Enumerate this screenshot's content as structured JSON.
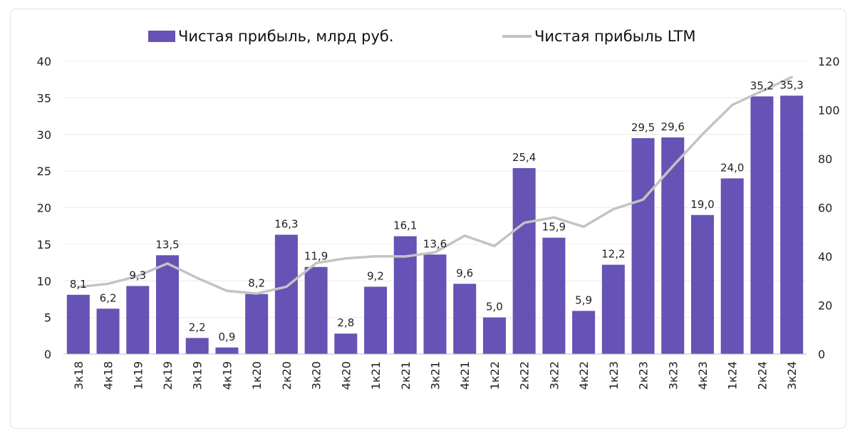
{
  "chart_data": {
    "type": "bar+line",
    "title": "",
    "categories": [
      "3к18",
      "4к18",
      "1к19",
      "2к19",
      "3к19",
      "4к19",
      "1к20",
      "2к20",
      "3к20",
      "4к20",
      "1к21",
      "2к21",
      "3к21",
      "4к21",
      "1к22",
      "2к22",
      "3к22",
      "4к22",
      "1к23",
      "2к23",
      "3к23",
      "4к23",
      "1к24",
      "2к24",
      "3к24"
    ],
    "series": [
      {
        "name": "Чистая прибыль, млрд руб.",
        "type": "bar",
        "axis": "left",
        "color": "#6752b5",
        "values": [
          8.1,
          6.2,
          9.3,
          13.5,
          2.2,
          0.9,
          8.2,
          16.3,
          11.9,
          2.8,
          9.2,
          16.1,
          13.6,
          9.6,
          5.0,
          25.4,
          15.9,
          5.9,
          12.2,
          29.5,
          29.6,
          19.0,
          24.0,
          35.2,
          35.3
        ],
        "labels": [
          "8,1",
          "6,2",
          "9,3",
          "13,5",
          "2,2",
          "0,9",
          "8,2",
          "16,3",
          "11,9",
          "2,8",
          "9,2",
          "16,1",
          "13,6",
          "9,6",
          "5,0",
          "25,4",
          "15,9",
          "5,9",
          "12,2",
          "29,5",
          "29,6",
          "19,0",
          "24,0",
          "35,2",
          "35,3"
        ]
      },
      {
        "name": "Чистая прибыль LTM",
        "type": "line",
        "axis": "right",
        "color": "#c3c3c3",
        "values": [
          27.5,
          28.8,
          32.0,
          37.1,
          31.2,
          25.9,
          24.8,
          27.6,
          37.3,
          39.2,
          40.1,
          40.0,
          41.7,
          48.5,
          44.3,
          53.8,
          56.0,
          52.2,
          59.4,
          63.3,
          77.0,
          90.1,
          102.1,
          107.8,
          113.5
        ]
      }
    ],
    "y_left": {
      "min": 0,
      "max": 40,
      "ticks": [
        "0",
        "5",
        "10",
        "15",
        "20",
        "25",
        "30",
        "35",
        "40"
      ]
    },
    "y_right": {
      "min": 0,
      "max": 120,
      "ticks": [
        "0",
        "20",
        "40",
        "60",
        "80",
        "100",
        "120"
      ]
    },
    "grid": true,
    "legend_position": "top-center"
  }
}
